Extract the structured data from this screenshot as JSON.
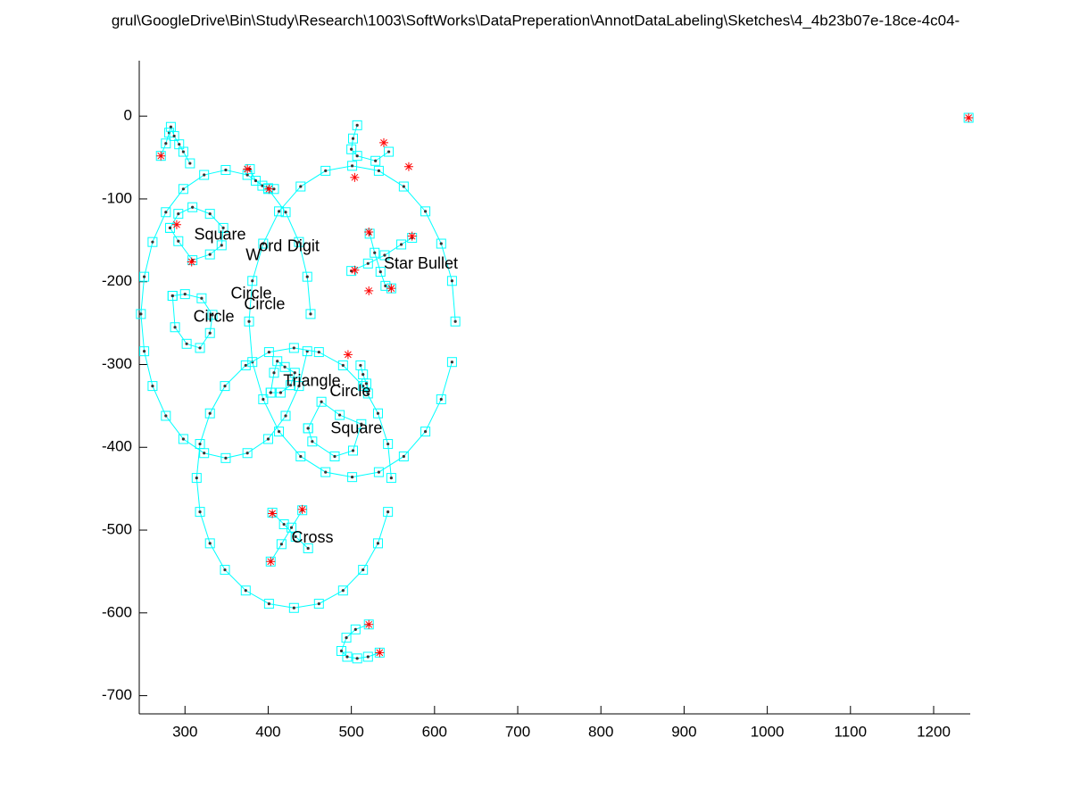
{
  "chart_data": {
    "type": "scatter",
    "title": "grul\\GoogleDrive\\Bin\\Study\\Research\\1003\\SoftWorks\\DataPreperation\\AnnotDataLabeling\\Sketches\\4_4b23b07e-18ce-4c04-",
    "xlim": [
      245,
      1244
    ],
    "ylim": [
      -722,
      67
    ],
    "xticks": [
      300,
      400,
      500,
      600,
      700,
      800,
      900,
      1000,
      1100,
      1200
    ],
    "yticks": [
      0,
      -100,
      -200,
      -300,
      -400,
      -500,
      -600,
      -700
    ],
    "stroke_color": "#00ffff",
    "dot_color": "#333333",
    "corner_color": "#ff0000",
    "strokes": [
      {
        "x": [
          451,
          447,
          437,
          421,
          400,
          375,
          349,
          323,
          298,
          277,
          261,
          251,
          247,
          251,
          261,
          277,
          298,
          323,
          349,
          375,
          400,
          421,
          437,
          447
        ],
        "y": [
          -239,
          -194,
          -152,
          -116,
          -88,
          -71,
          -65,
          -71,
          -88,
          -116,
          -152,
          -194,
          -239,
          -284,
          -326,
          -362,
          -390,
          -407,
          -413,
          -407,
          -390,
          -362,
          -326,
          -284
        ]
      },
      {
        "x": [
          625,
          621,
          608,
          589,
          563,
          533,
          501,
          469,
          439,
          413,
          394,
          381,
          377,
          381,
          394,
          413,
          439,
          469,
          501,
          533,
          563,
          589,
          608,
          621
        ],
        "y": [
          -248,
          -199,
          -154,
          -115,
          -85,
          -66,
          -60,
          -66,
          -85,
          -115,
          -154,
          -199,
          -248,
          -297,
          -342,
          -381,
          -411,
          -430,
          -436,
          -430,
          -411,
          -381,
          -342,
          -297
        ]
      },
      {
        "x": [
          548,
          544,
          532,
          514,
          490,
          461,
          431,
          401,
          373,
          348,
          330,
          318,
          314,
          318,
          330,
          348,
          373,
          401,
          431,
          461,
          490,
          514,
          532,
          544
        ],
        "y": [
          -437,
          -396,
          -359,
          -326,
          -301,
          -285,
          -280,
          -285,
          -301,
          -326,
          -359,
          -396,
          -437,
          -478,
          -516,
          -548,
          -573,
          -589,
          -594,
          -589,
          -573,
          -548,
          -516,
          -478
        ]
      },
      {
        "x": [
          271,
          277,
          281,
          283,
          287,
          293,
          298,
          306
        ],
        "y": [
          -48,
          -33,
          -20,
          -13,
          -24,
          -34,
          -43,
          -57
        ]
      },
      {
        "x": [
          378,
          385,
          393,
          400,
          407
        ],
        "y": [
          -64,
          -78,
          -84,
          -87,
          -88
        ]
      },
      {
        "x": [
          282,
          292,
          309,
          330,
          346,
          344,
          330,
          309,
          292,
          282
        ],
        "y": [
          -135,
          -118,
          -110,
          -118,
          -135,
          -156,
          -167,
          -174,
          -151,
          -135
        ]
      },
      {
        "x": [
          285,
          300,
          320,
          333,
          330,
          318,
          302,
          288,
          285
        ],
        "y": [
          -217,
          -215,
          -220,
          -240,
          -262,
          -280,
          -275,
          -255,
          -217
        ]
      },
      {
        "x": [
          507,
          502,
          500,
          507,
          529,
          545
        ],
        "y": [
          -11,
          -27,
          -40,
          -48,
          -54,
          -43
        ]
      },
      {
        "x": [
          522,
          528,
          535,
          541,
          548
        ],
        "y": [
          -142,
          -165,
          -188,
          -205,
          -208
        ]
      },
      {
        "x": [
          500,
          520,
          540,
          560,
          573
        ],
        "y": [
          -187,
          -178,
          -168,
          -155,
          -147
        ]
      },
      {
        "x": [
          403,
          407,
          411,
          420,
          432,
          427,
          415,
          403
        ],
        "y": [
          -334,
          -310,
          -296,
          -303,
          -310,
          -325,
          -334,
          -334
        ]
      },
      {
        "x": [
          448,
          464,
          486,
          512,
          502,
          480,
          453,
          448
        ],
        "y": [
          -377,
          -345,
          -361,
          -372,
          -404,
          -411,
          -393,
          -377
        ]
      },
      {
        "x": [
          511,
          514,
          518,
          520
        ],
        "y": [
          -301,
          -312,
          -323,
          -335
        ]
      },
      {
        "x": [
          405,
          419,
          433,
          448
        ],
        "y": [
          -479,
          -493,
          -508,
          -522
        ]
      },
      {
        "x": [
          441,
          428,
          416,
          403
        ],
        "y": [
          -476,
          -497,
          -517,
          -538
        ]
      },
      {
        "x": [
          521,
          505,
          494,
          488,
          495,
          507,
          520,
          534
        ],
        "y": [
          -614,
          -620,
          -630,
          -646,
          -653,
          -655,
          -653,
          -648
        ]
      },
      {
        "x": [
          1242
        ],
        "y": [
          -2
        ]
      }
    ],
    "corners": {
      "x": [
        271,
        290,
        308,
        375,
        401,
        539,
        504,
        569,
        521,
        504,
        521,
        548,
        573,
        496,
        405,
        441,
        403,
        521,
        534,
        1242
      ],
      "y": [
        -48,
        -131,
        -176,
        -64,
        -88,
        -32,
        -74,
        -61,
        -140,
        -186,
        -211,
        -208,
        -145,
        -288,
        -480,
        -475,
        -538,
        -614,
        -648,
        -2
      ]
    },
    "annotations": [
      {
        "text": "Square",
        "x": 311,
        "y": -144
      },
      {
        "text": "Digit",
        "x": 423,
        "y": -158
      },
      {
        "text": "W",
        "x": 373,
        "y": -169
      },
      {
        "text": "ord",
        "x": 389,
        "y": -158
      },
      {
        "text": "Star Bullet",
        "x": 539,
        "y": -179
      },
      {
        "text": "Circle",
        "x": 355,
        "y": -215
      },
      {
        "text": "Circle",
        "x": 371,
        "y": -228
      },
      {
        "text": "Circle",
        "x": 310,
        "y": -243
      },
      {
        "text": "Triangle",
        "x": 418,
        "y": -321
      },
      {
        "text": "Circle",
        "x": 474,
        "y": -333
      },
      {
        "text": "Square",
        "x": 475,
        "y": -378
      },
      {
        "text": "Cross",
        "x": 428,
        "y": -510
      }
    ]
  }
}
